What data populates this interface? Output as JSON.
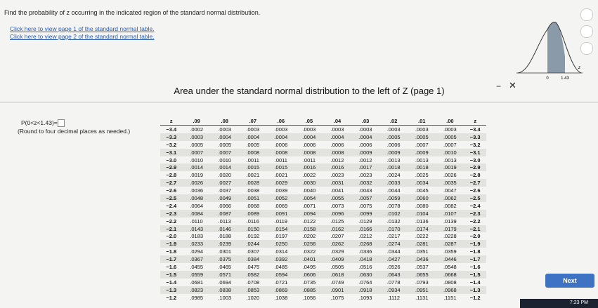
{
  "question": "Find the probability of z occurring in the indicated region of the standard normal distribution.",
  "links": [
    "Click here to view page 1 of the standard normal table.",
    "Click here to view page 2 of the standard normal table."
  ],
  "figure": {
    "left_label": "0",
    "right_label": "1.43",
    "axis_label": "z"
  },
  "prompt": {
    "expression": "P(0<z<1.43)=",
    "note": "(Round to four decimal places as needed.)"
  },
  "dialog_title": "Area under the standard normal distribution to the left of Z (page 1)",
  "next_button": "Next",
  "clock": "7:23 PM",
  "table": {
    "header": [
      "z",
      ".09",
      ".08",
      ".07",
      ".06",
      ".05",
      ".04",
      ".03",
      ".02",
      ".01",
      ".00",
      "z"
    ],
    "rows": [
      [
        "−3.4",
        ".0002",
        ".0003",
        ".0003",
        ".0003",
        ".0003",
        ".0003",
        ".0003",
        ".0003",
        ".0003",
        ".0003",
        "−3.4"
      ],
      [
        "−3.3",
        ".0003",
        ".0004",
        ".0004",
        ".0004",
        ".0004",
        ".0004",
        ".0004",
        ".0005",
        ".0005",
        ".0005",
        "−3.3"
      ],
      [
        "−3.2",
        ".0005",
        ".0005",
        ".0005",
        ".0006",
        ".0006",
        ".0006",
        ".0006",
        ".0006",
        ".0007",
        ".0007",
        "−3.2"
      ],
      [
        "−3.1",
        ".0007",
        ".0007",
        ".0008",
        ".0008",
        ".0008",
        ".0008",
        ".0009",
        ".0009",
        ".0009",
        ".0010",
        "−3.1"
      ],
      [
        "−3.0",
        ".0010",
        ".0010",
        ".0011",
        ".0011",
        ".0011",
        ".0012",
        ".0012",
        ".0013",
        ".0013",
        ".0013",
        "−3.0"
      ],
      [
        "−2.9",
        ".0014",
        ".0014",
        ".0015",
        ".0015",
        ".0016",
        ".0016",
        ".0017",
        ".0018",
        ".0018",
        ".0019",
        "−2.9"
      ],
      [
        "−2.8",
        ".0019",
        ".0020",
        ".0021",
        ".0021",
        ".0022",
        ".0023",
        ".0023",
        ".0024",
        ".0025",
        ".0026",
        "−2.8"
      ],
      [
        "−2.7",
        ".0026",
        ".0027",
        ".0028",
        ".0029",
        ".0030",
        ".0031",
        ".0032",
        ".0033",
        ".0034",
        ".0035",
        "−2.7"
      ],
      [
        "−2.6",
        ".0036",
        ".0037",
        ".0038",
        ".0039",
        ".0040",
        ".0041",
        ".0043",
        ".0044",
        ".0045",
        ".0047",
        "−2.6"
      ],
      [
        "−2.5",
        ".0048",
        ".0049",
        ".0051",
        ".0052",
        ".0054",
        ".0055",
        ".0057",
        ".0059",
        ".0060",
        ".0062",
        "−2.5"
      ],
      [
        "−2.4",
        ".0064",
        ".0066",
        ".0068",
        ".0069",
        ".0071",
        ".0073",
        ".0075",
        ".0078",
        ".0080",
        ".0082",
        "−2.4"
      ],
      [
        "−2.3",
        ".0084",
        ".0087",
        ".0089",
        ".0091",
        ".0094",
        ".0096",
        ".0099",
        ".0102",
        ".0104",
        ".0107",
        "−2.3"
      ],
      [
        "−2.2",
        ".0110",
        ".0113",
        ".0116",
        ".0119",
        ".0122",
        ".0125",
        ".0129",
        ".0132",
        ".0136",
        ".0139",
        "−2.2"
      ],
      [
        "−2.1",
        ".0143",
        ".0146",
        ".0150",
        ".0154",
        ".0158",
        ".0162",
        ".0166",
        ".0170",
        ".0174",
        ".0179",
        "−2.1"
      ],
      [
        "−2.0",
        ".0183",
        ".0188",
        ".0192",
        ".0197",
        ".0202",
        ".0207",
        ".0212",
        ".0217",
        ".0222",
        ".0228",
        "−2.0"
      ],
      [
        "−1.9",
        ".0233",
        ".0239",
        ".0244",
        ".0250",
        ".0256",
        ".0262",
        ".0268",
        ".0274",
        ".0281",
        ".0287",
        "−1.9"
      ],
      [
        "−1.8",
        ".0294",
        ".0301",
        ".0307",
        ".0314",
        ".0322",
        ".0329",
        ".0336",
        ".0344",
        ".0351",
        ".0359",
        "−1.8"
      ],
      [
        "−1.7",
        ".0367",
        ".0375",
        ".0384",
        ".0392",
        ".0401",
        ".0409",
        ".0418",
        ".0427",
        ".0436",
        ".0446",
        "−1.7"
      ],
      [
        "−1.6",
        ".0455",
        ".0465",
        ".0475",
        ".0485",
        ".0495",
        ".0505",
        ".0516",
        ".0526",
        ".0537",
        ".0548",
        "−1.6"
      ],
      [
        "−1.5",
        ".0559",
        ".0571",
        ".0582",
        ".0594",
        ".0606",
        ".0618",
        ".0630",
        ".0643",
        ".0655",
        ".0668",
        "−1.5"
      ],
      [
        "−1.4",
        ".0681",
        ".0694",
        ".0708",
        ".0721",
        ".0735",
        ".0749",
        ".0764",
        ".0778",
        ".0793",
        ".0808",
        "−1.4"
      ],
      [
        "−1.3",
        ".0823",
        ".0838",
        ".0853",
        ".0869",
        ".0885",
        ".0901",
        ".0918",
        ".0934",
        ".0951",
        ".0968",
        "−1.3"
      ],
      [
        "−1.2",
        ".0985",
        ".1003",
        ".1020",
        ".1038",
        ".1056",
        ".1075",
        ".1093",
        ".1112",
        ".1131",
        ".1151",
        "−1.2"
      ]
    ]
  }
}
